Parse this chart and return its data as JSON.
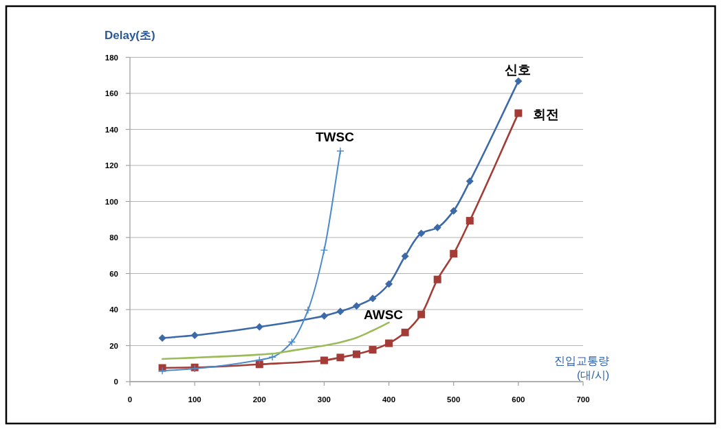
{
  "chart_data": {
    "type": "line",
    "ylabel": "Delay(초)",
    "xlabel": "진입교통량\n(대/시)",
    "xlim": [
      0,
      700
    ],
    "xticks": [
      0,
      100,
      200,
      300,
      400,
      500,
      600,
      700
    ],
    "ylim": [
      0,
      180
    ],
    "yticks": [
      0,
      20,
      40,
      60,
      80,
      100,
      120,
      140,
      160,
      180
    ],
    "grid": "y",
    "series": [
      {
        "name": "신호",
        "color": "#3c6aa8",
        "marker": "diamond",
        "x": [
          50,
          100,
          200,
          300,
          325,
          350,
          375,
          400,
          425,
          450,
          475,
          500,
          525,
          600
        ],
        "values": [
          24.2,
          25.7,
          30.4,
          36.5,
          39,
          42,
          46.2,
          54.2,
          69.6,
          82.3,
          85.5,
          94.8,
          111.2,
          166.8
        ]
      },
      {
        "name": "회전",
        "color": "#a33b36",
        "marker": "square",
        "x": [
          50,
          100,
          200,
          300,
          325,
          350,
          375,
          400,
          425,
          450,
          475,
          500,
          525,
          600
        ],
        "values": [
          7.6,
          7.9,
          9.6,
          11.8,
          13.4,
          15.2,
          17.7,
          21.3,
          27.3,
          37.3,
          56.7,
          71,
          89.3,
          149
        ]
      },
      {
        "name": "TWSC",
        "color": "#4a8acb",
        "marker": "cross",
        "x": [
          50,
          100,
          200,
          220,
          250,
          275,
          300,
          325
        ],
        "values": [
          6,
          7.2,
          12,
          13.6,
          22,
          39.7,
          73,
          128
        ]
      },
      {
        "name": "AWSC",
        "color": "#9bbb59",
        "marker": "none",
        "x": [
          50,
          100,
          200,
          220,
          250,
          275,
          300,
          325,
          350,
          375,
          400
        ],
        "values": [
          12.6,
          13.3,
          15,
          15.5,
          17.2,
          18.6,
          20,
          21.8,
          24.4,
          28.4,
          32.8
        ]
      }
    ]
  }
}
